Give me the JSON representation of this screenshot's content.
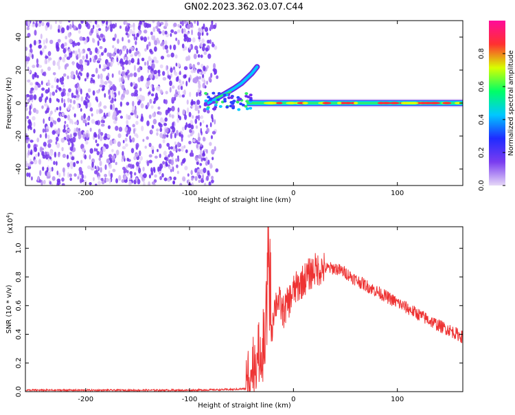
{
  "title": "GN02.2023.362.03.07.C44",
  "chart_data": [
    {
      "type": "heatmap",
      "xlabel": "Height of straight line (km)",
      "ylabel": "Frequency (Hz)",
      "xlim": [
        -258,
        163
      ],
      "ylim": [
        -50,
        50
      ],
      "xticks": [
        -200,
        -100,
        0,
        100
      ],
      "yticks": [
        -40,
        -20,
        0,
        20,
        40
      ],
      "grid": false,
      "noise_region": {
        "x": [
          -258,
          -72
        ],
        "y": [
          -50,
          50
        ]
      },
      "signal_band": {
        "x_start": -85,
        "x_end": 163,
        "center_hz": 0,
        "features": [
          {
            "x": -65,
            "y": 6
          },
          {
            "x": -57,
            "y": 9
          },
          {
            "x": -50,
            "y": 12
          },
          {
            "x": -40,
            "y": 18
          },
          {
            "x": -35,
            "y": 22
          }
        ]
      },
      "colorbar": {
        "label": "Normalized spectral amplitude",
        "range": [
          0,
          1
        ],
        "ticks": [
          "0.0",
          "0.2",
          "0.4",
          "0.6",
          "0.8"
        ],
        "colors": [
          "#e6d8f7",
          "#7a3cf0",
          "#1f2bff",
          "#00c8ff",
          "#00ff66",
          "#d8ff00",
          "#ff3030",
          "#ff0b9a"
        ]
      }
    },
    {
      "type": "line",
      "xlabel": "Height of straight line (km)",
      "ylabel": "SNR (10 * v/v)",
      "y_multiplier": "(x10",
      "y_multiplier_exp": "4",
      "y_multiplier_close": ")",
      "xlim": [
        -258,
        163
      ],
      "ylim": [
        0,
        1.15
      ],
      "xticks": [
        -200,
        -100,
        0,
        100
      ],
      "yticks": [
        "0.0",
        "0.2",
        "0.4",
        "0.6",
        "0.8",
        "1.0"
      ],
      "line_color": "#ee3333",
      "series": [
        {
          "x": [
            -258,
            -200,
            -100,
            -60,
            -46,
            -44,
            -40,
            -35,
            -30,
            -26,
            -24,
            -20,
            -15,
            -10,
            -5,
            0,
            10,
            20,
            30,
            40,
            50,
            60,
            80,
            100,
            120,
            140,
            150,
            163
          ],
          "y": [
            0.01,
            0.01,
            0.01,
            0.015,
            0.02,
            0.12,
            0.18,
            0.25,
            0.3,
            0.6,
            1.15,
            0.55,
            0.65,
            0.55,
            0.62,
            0.7,
            0.78,
            0.85,
            0.86,
            0.86,
            0.83,
            0.78,
            0.7,
            0.62,
            0.54,
            0.46,
            0.43,
            0.38
          ]
        }
      ]
    }
  ]
}
